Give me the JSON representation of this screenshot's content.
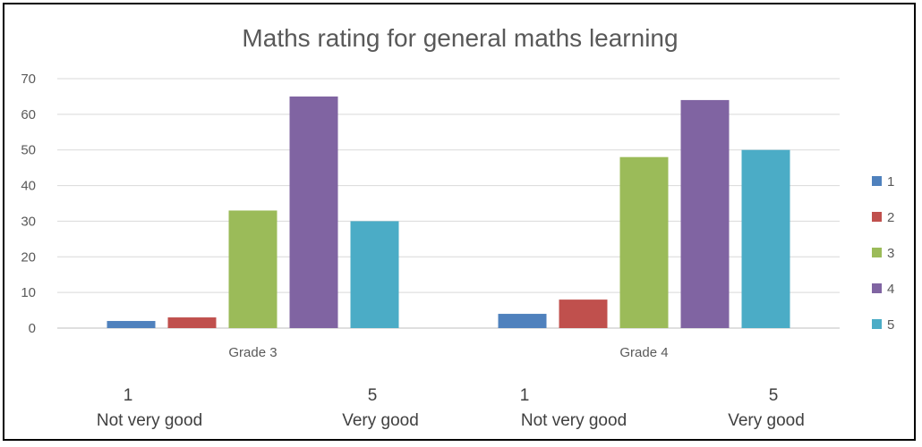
{
  "chart_data": {
    "type": "bar",
    "title": "Maths rating for general maths learning",
    "xlabel": "",
    "ylabel": "",
    "ylim": [
      0,
      70
    ],
    "yticks": [
      0,
      10,
      20,
      30,
      40,
      50,
      60,
      70
    ],
    "grid": true,
    "legend_position": "right",
    "categories": [
      "Grade 3",
      "Grade 4"
    ],
    "series": [
      {
        "name": "1",
        "color": "#4F81BD",
        "values": [
          2,
          4
        ]
      },
      {
        "name": "2",
        "color": "#C0504D",
        "values": [
          3,
          8
        ]
      },
      {
        "name": "3",
        "color": "#9BBB59",
        "values": [
          33,
          48
        ]
      },
      {
        "name": "4",
        "color": "#8064A2",
        "values": [
          65,
          64
        ]
      },
      {
        "name": "5",
        "color": "#4BACC6",
        "values": [
          30,
          50
        ]
      }
    ]
  },
  "annotations": [
    {
      "number": "1",
      "label": "Not very good"
    },
    {
      "number": "5",
      "label": "Very good"
    },
    {
      "number": "1",
      "label": "Not very good"
    },
    {
      "number": "5",
      "label": "Very good"
    }
  ]
}
